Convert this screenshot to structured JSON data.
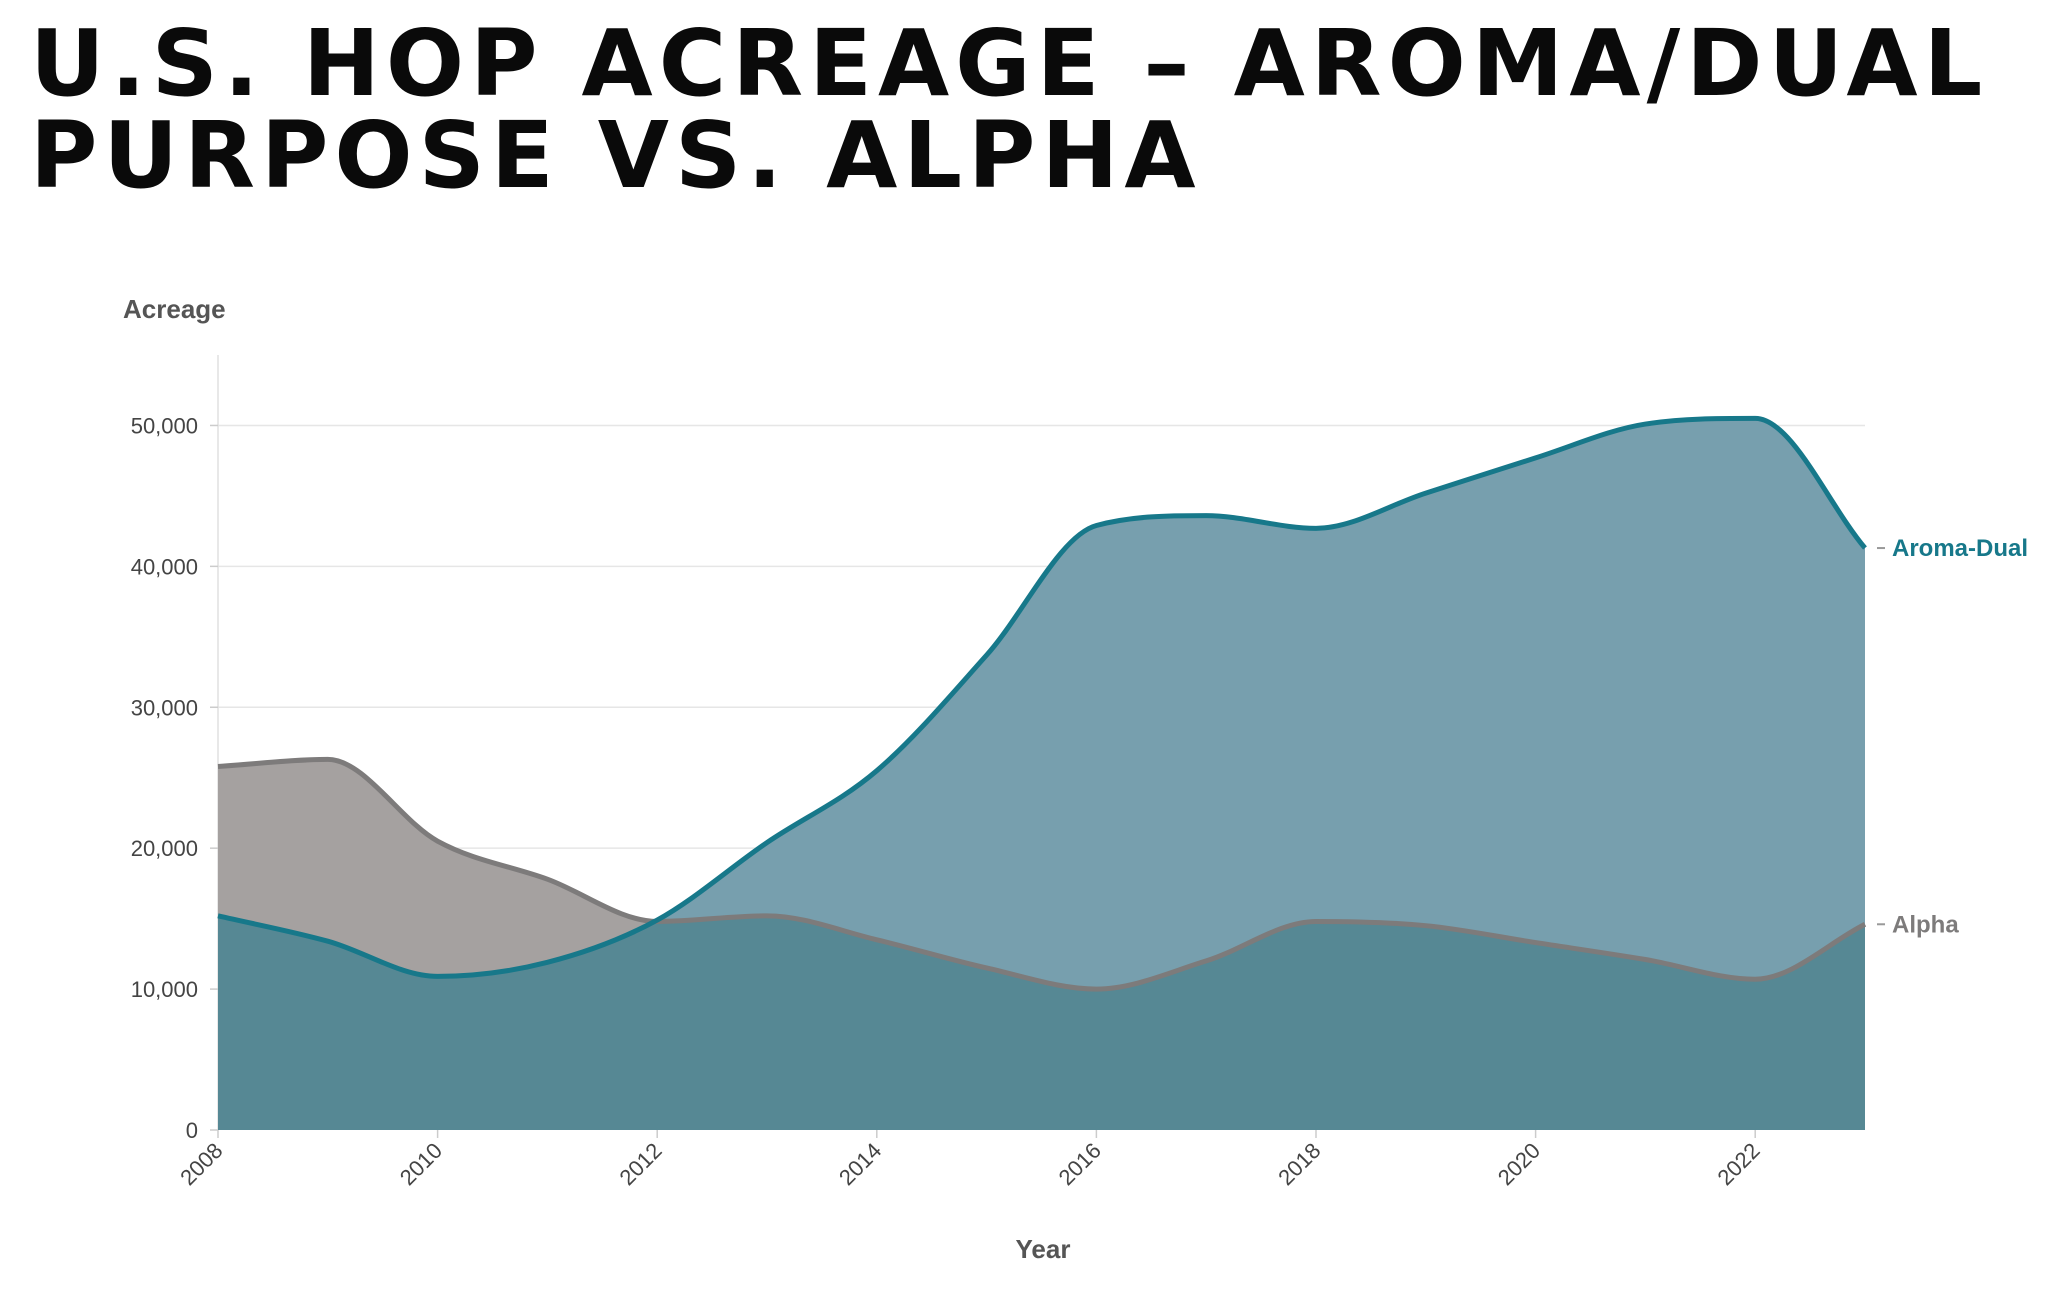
{
  "title": "U.S. HOP ACREAGE – AROMA/DUAL PURPOSE VS. ALPHA",
  "chart_data": {
    "type": "area",
    "title": "U.S. HOP ACREAGE – AROMA/DUAL PURPOSE VS. ALPHA",
    "xlabel": "Year",
    "ylabel": "Acreage",
    "x": [
      2008,
      2009,
      2010,
      2011,
      2012,
      2013,
      2014,
      2015,
      2016,
      2017,
      2018,
      2019,
      2020,
      2021,
      2022,
      2023
    ],
    "xlim": [
      2008,
      2023
    ],
    "ylim": [
      0,
      55000
    ],
    "x_ticks": [
      "2008",
      "2010",
      "2012",
      "2014",
      "2016",
      "2018",
      "2020",
      "2022"
    ],
    "y_ticks": [
      "0",
      "10,000",
      "20,000",
      "30,000",
      "40,000",
      "50,000"
    ],
    "grid": true,
    "legend": "direct labels at right end of lines",
    "series": [
      {
        "name": "Alpha",
        "color": "#7d7b7b",
        "fill": "#a5a1a0",
        "values": [
          25800,
          26300,
          20500,
          17800,
          14800,
          15200,
          13500,
          11500,
          10000,
          12000,
          14800,
          14500,
          13300,
          12100,
          10700,
          14600
        ]
      },
      {
        "name": "Aroma-Dual",
        "color": "#17788a",
        "fill": "#779fae",
        "values": [
          15200,
          13400,
          10900,
          11900,
          14900,
          20400,
          25500,
          33700,
          42900,
          43600,
          42700,
          45200,
          47700,
          50100,
          50500,
          41300
        ]
      }
    ],
    "overlap_fill": "#568894"
  }
}
